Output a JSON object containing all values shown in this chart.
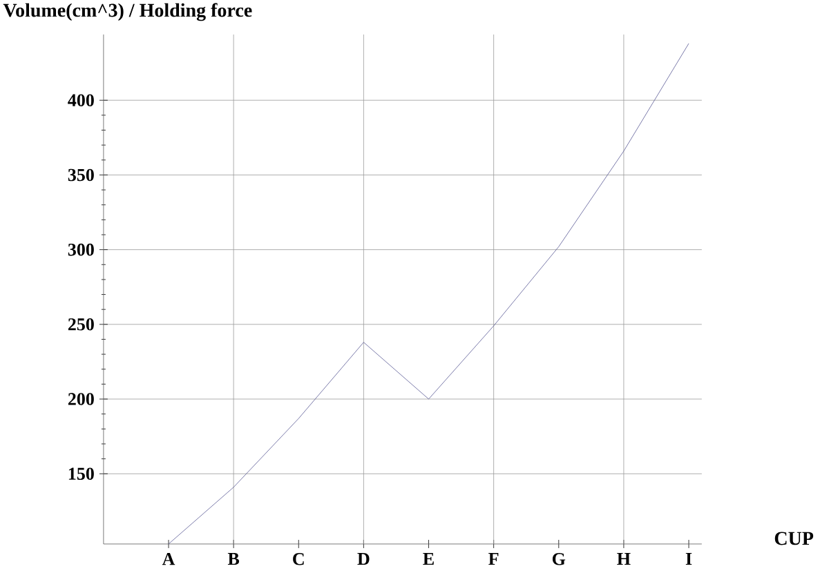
{
  "chart_data": {
    "type": "line",
    "xlabel": "CUP",
    "ylabel": "Volume(cm^3) / Holding force",
    "categories": [
      "A",
      "B",
      "C",
      "D",
      "E",
      "F",
      "G",
      "H",
      "I"
    ],
    "values": [
      103,
      141,
      187,
      238,
      200,
      249,
      302,
      366,
      438
    ],
    "color": "#5a5a96",
    "ylim": [
      103,
      444
    ],
    "yticks": [
      150,
      200,
      250,
      300,
      350,
      400
    ],
    "grid": true,
    "line_style": "solid",
    "marker": "none"
  }
}
